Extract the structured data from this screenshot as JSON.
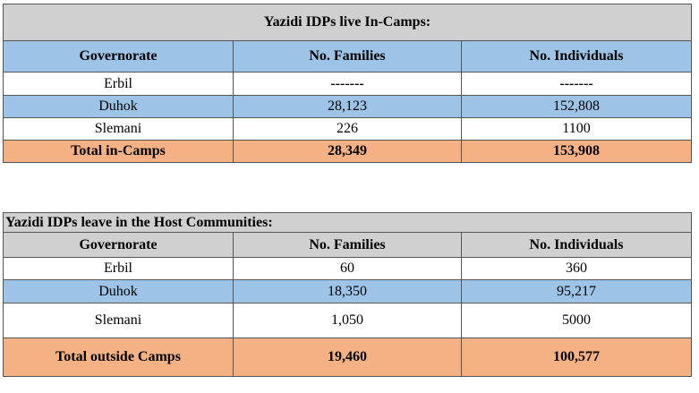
{
  "tables": [
    {
      "title": "Yazidi IDPs live In-Camps:",
      "header": [
        "Governorate",
        "No. Families",
        "No. Individuals"
      ],
      "rows": [
        [
          "Erbil",
          "-------",
          "-------"
        ],
        [
          "Duhok",
          "28,123",
          "152,808"
        ],
        [
          "Slemani",
          "226",
          "1100"
        ]
      ],
      "total": [
        "Total in-Camps",
        "28,349",
        "153,908"
      ]
    },
    {
      "title": "Yazidi IDPs leave in the Host Communities:",
      "header": [
        "Governorate",
        "No. Families",
        "No. Individuals"
      ],
      "rows": [
        [
          "Erbil",
          "60",
          "360"
        ],
        [
          "Duhok",
          "18,350",
          "95,217"
        ],
        [
          "Slemani",
          "1,050",
          "5000"
        ]
      ],
      "total": [
        "Total outside Camps",
        "19,460",
        "100,577"
      ]
    }
  ]
}
